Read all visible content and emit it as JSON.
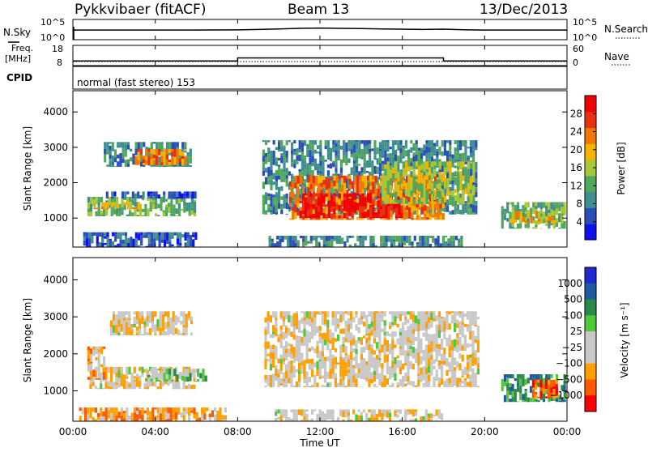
{
  "header": {
    "station": "Pykkvibaer (fitACF)",
    "beam": "Beam 13",
    "date": "13/Dec/2013"
  },
  "colors": {
    "power_scale": [
      "#1010ee",
      "#2a4fb8",
      "#3f8f8f",
      "#52a85a",
      "#a8c83a",
      "#f5b400",
      "#f07800",
      "#e83010",
      "#f00000"
    ],
    "velocity_scale": [
      "#ff0000",
      "#ff5a00",
      "#ffa000",
      "#c8c8c8",
      "#c8c8c8",
      "#50c83c",
      "#2a8a4a",
      "#205aa0",
      "#2028d0"
    ],
    "ground_scatter": "#b8b8b0"
  },
  "chart_data": [
    {
      "type": "line",
      "name": "nsky-nsearch",
      "labels": {
        "left": "N.Sky",
        "right": "N.Search"
      },
      "y_ticks_left": [
        "10^5",
        "10^0"
      ],
      "y_ticks_right": [
        "10^5",
        "10^0"
      ],
      "x": [
        0,
        2,
        4,
        6,
        8,
        9,
        10,
        11,
        12,
        13,
        14,
        15,
        16,
        17,
        18,
        19,
        20,
        22,
        24
      ],
      "values": [
        3.3,
        3.3,
        3.3,
        3.3,
        3.35,
        3.5,
        3.7,
        3.9,
        4.0,
        3.9,
        3.8,
        3.7,
        3.6,
        3.5,
        3.6,
        3.4,
        3.3,
        3.3,
        3.3
      ]
    },
    {
      "type": "line",
      "name": "frequency-nave",
      "labels": {
        "left_top": "Freq.",
        "left_bottom": "[MHz]",
        "right": "Nave"
      },
      "y_ticks_left": [
        "18",
        "8"
      ],
      "y_ticks_right": [
        "60",
        "0"
      ],
      "freq_steps": [
        {
          "from": 0,
          "to": 8.0,
          "mhz": 10.3
        },
        {
          "from": 8.0,
          "to": 18.0,
          "mhz": 11.8
        },
        {
          "from": 18.0,
          "to": 24,
          "mhz": 10.3
        }
      ],
      "nave_level": 12
    },
    {
      "type": "table",
      "name": "cpid",
      "label": "CPID",
      "text": "normal (fast stereo) 153"
    },
    {
      "type": "heatmap",
      "name": "power",
      "ylabel": "Slant Range [km]",
      "ylim": [
        180,
        4600
      ],
      "y_ticks": [
        1000,
        2000,
        3000,
        4000
      ],
      "xlim": [
        0,
        24
      ],
      "colorbar": {
        "label": "Power [dB]",
        "ticks": [
          4,
          8,
          12,
          16,
          20,
          24,
          28
        ],
        "range": [
          0,
          32
        ]
      },
      "regions": [
        {
          "t0": 0.5,
          "t1": 6.1,
          "r0": 180,
          "r1": 600,
          "level": 1
        },
        {
          "t0": 0.7,
          "t1": 6.0,
          "r0": 1050,
          "r1": 1600,
          "level": 3
        },
        {
          "t0": 1.0,
          "t1": 3.3,
          "r0": 1250,
          "r1": 1450,
          "level": 5
        },
        {
          "t0": 1.6,
          "t1": 6.0,
          "r0": 1550,
          "r1": 1750,
          "level": 1
        },
        {
          "t0": 1.5,
          "t1": 5.8,
          "r0": 2450,
          "r1": 3150,
          "level": 2
        },
        {
          "t0": 3.0,
          "t1": 5.5,
          "r0": 2500,
          "r1": 2950,
          "level": 6
        },
        {
          "t0": 9.5,
          "t1": 19.0,
          "r0": 180,
          "r1": 500,
          "level": 2
        },
        {
          "t0": 9.2,
          "t1": 19.7,
          "r0": 1100,
          "r1": 3200,
          "level": 2
        },
        {
          "t0": 10.5,
          "t1": 18.0,
          "r0": 950,
          "r1": 2200,
          "level": 6
        },
        {
          "t0": 11.0,
          "t1": 16.0,
          "r0": 1000,
          "r1": 1700,
          "level": 8
        },
        {
          "t0": 15.0,
          "t1": 19.5,
          "r0": 1400,
          "r1": 2600,
          "level": 4
        },
        {
          "t0": 20.8,
          "t1": 23.9,
          "r0": 700,
          "r1": 1450,
          "level": 3
        },
        {
          "t0": 21.2,
          "t1": 23.5,
          "r0": 850,
          "r1": 1200,
          "level": 5
        }
      ]
    },
    {
      "type": "heatmap",
      "name": "velocity",
      "ylabel": "Slant Range [km]",
      "xlabel": "Time UT",
      "ylim": [
        180,
        4600
      ],
      "y_ticks": [
        1000,
        2000,
        3000,
        4000
      ],
      "xlim": [
        0,
        24
      ],
      "x_ticks": [
        "00:00",
        "04:00",
        "08:00",
        "12:00",
        "16:00",
        "20:00",
        "00:00"
      ],
      "colorbar": {
        "label": "Velocity [m s⁻¹]",
        "ticks": [
          "1000",
          "500",
          "100",
          "25",
          "−25",
          "−100",
          "−500",
          "−1000"
        ]
      },
      "regions": [
        {
          "t0": 0.3,
          "t1": 7.5,
          "r0": 180,
          "r1": 550,
          "level": 2
        },
        {
          "t0": 0.8,
          "t1": 6.0,
          "r0": 1050,
          "r1": 1650,
          "level": 3
        },
        {
          "t0": 0.7,
          "t1": 1.6,
          "r0": 1300,
          "r1": 2200,
          "level": 2
        },
        {
          "t0": 3.5,
          "t1": 6.5,
          "r0": 1250,
          "r1": 1600,
          "level": 5
        },
        {
          "t0": 1.8,
          "t1": 5.8,
          "r0": 2500,
          "r1": 3150,
          "level": 3
        },
        {
          "t0": 9.3,
          "t1": 19.8,
          "r0": 1100,
          "r1": 3150,
          "level": 3
        },
        {
          "t0": 9.8,
          "t1": 18.0,
          "r0": 180,
          "r1": 500,
          "level": 3
        },
        {
          "t0": 20.8,
          "t1": 23.9,
          "r0": 700,
          "r1": 1450,
          "level": 6
        },
        {
          "t0": 22.3,
          "t1": 23.6,
          "r0": 800,
          "r1": 1300,
          "level": 1
        }
      ]
    }
  ]
}
